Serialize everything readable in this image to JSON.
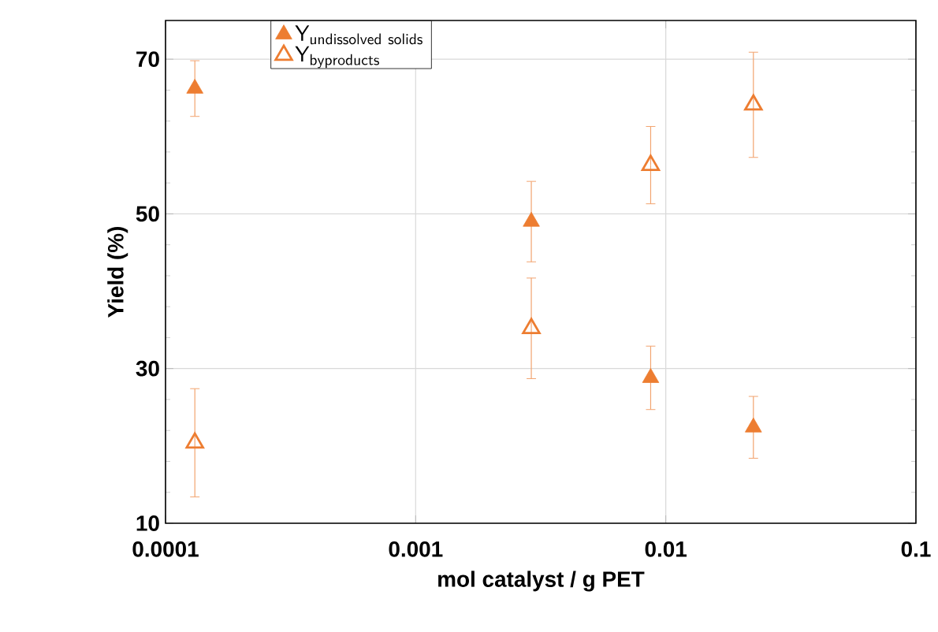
{
  "chart_data": {
    "type": "scatter",
    "xlabel": "mol catalyst / g PET",
    "ylabel": "Yield (%)",
    "log": "x",
    "grid": true,
    "legend": "top left",
    "xlim": [
      0.0001,
      0.1
    ],
    "xticks": [
      0.0001,
      0.001,
      0.01,
      0.1
    ],
    "ylim": [
      10,
      75
    ],
    "yticks": [
      10,
      30,
      50,
      70
    ],
    "series": [
      {
        "name": "\\mathsf{Y}_{\\mathsf{undissolved\\ solids}}",
        "color": "#ed7d31",
        "marker": "triangle",
        "x": [
          0.000131,
          0.0029,
          0.0087,
          0.0224
        ],
        "values": [
          66.2,
          49,
          28.8,
          22.4
        ],
        "errors": [
          3.6,
          5.2,
          4.1,
          4
        ]
      },
      {
        "name": "\\mathsf{Y}_{\\mathsf{byproducts}}",
        "color": "#ed7d31",
        "marker": "triangle-open",
        "x": [
          0.000131,
          0.0029,
          0.0087,
          0.0224
        ],
        "values": [
          20.4,
          35.2,
          56.3,
          64.1
        ],
        "errors": [
          7,
          6.5,
          5,
          6.8
        ]
      }
    ]
  }
}
